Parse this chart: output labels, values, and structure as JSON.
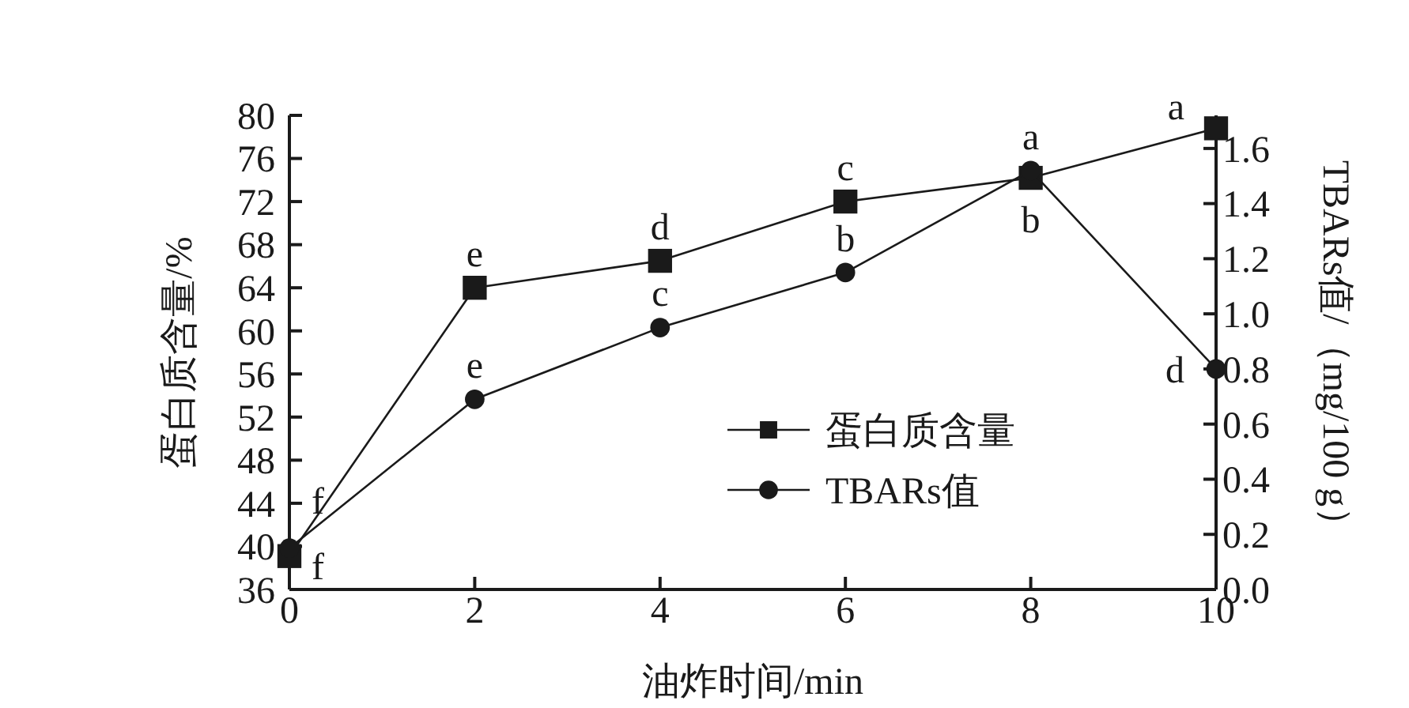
{
  "chart_data": {
    "type": "line",
    "xlabel": "油炸时间/min",
    "ylabel": "蛋白质含量/%",
    "y2label": "TBARs值/（mg/100 g）",
    "x": [
      0,
      2,
      4,
      6,
      8,
      10
    ],
    "series": [
      {
        "name": "蛋白质含量",
        "color": "#1a1a1a",
        "marker": "square",
        "values": [
          39.1,
          64,
          66.5,
          72,
          74.2,
          78.8
        ]
      },
      {
        "name": "TBARs值",
        "color": "#1a1a1a",
        "marker": "circle",
        "axis": "y2",
        "values": [
          0.15,
          0.69,
          0.95,
          1.15,
          1.52,
          0.8
        ]
      }
    ],
    "xlim": [
      0,
      10
    ],
    "xticks": [
      0,
      2,
      4,
      6,
      8,
      10
    ],
    "ylim": [
      36,
      80
    ],
    "yticks": [
      36,
      40,
      44,
      48,
      52,
      56,
      60,
      64,
      68,
      72,
      76,
      80
    ],
    "y2lim": [
      0,
      1.72
    ],
    "y2ticks": [
      {
        "value": 0,
        "label": "0.0"
      },
      {
        "value": 0.2,
        "label": "0.2"
      },
      {
        "value": 0.4,
        "label": "0.4"
      },
      {
        "value": 0.6,
        "label": "0.6"
      },
      {
        "value": 0.8,
        "label": "0.8"
      },
      {
        "value": 1,
        "label": "1.0"
      },
      {
        "value": 1.2,
        "label": "1.2"
      },
      {
        "value": 1.4,
        "label": "1.4"
      },
      {
        "value": 1.6,
        "label": "1.6"
      }
    ],
    "annotations": [
      {
        "text": "f",
        "x": 0,
        "y": 39.84
      },
      {
        "text": "f",
        "x": 0,
        "y": 39.1
      },
      {
        "text": "e",
        "x": 2,
        "y": 64
      },
      {
        "text": "e",
        "x": 2,
        "y": 53.65
      },
      {
        "text": "d",
        "x": 4,
        "y": 66.5
      },
      {
        "text": "c",
        "x": 4,
        "y": 60.3
      },
      {
        "text": "c",
        "x": 6,
        "y": 72
      },
      {
        "text": "b",
        "x": 6,
        "y": 65.42
      },
      {
        "text": "a",
        "x": 8,
        "y": 74.88
      },
      {
        "text": "b",
        "x": 8,
        "y": 74.2
      },
      {
        "text": "a",
        "x": 10,
        "y": 78.8
      },
      {
        "text": "d",
        "x": 10,
        "y": 56.47
      }
    ],
    "grid": false,
    "legend": "right",
    "line_style": "solid"
  }
}
